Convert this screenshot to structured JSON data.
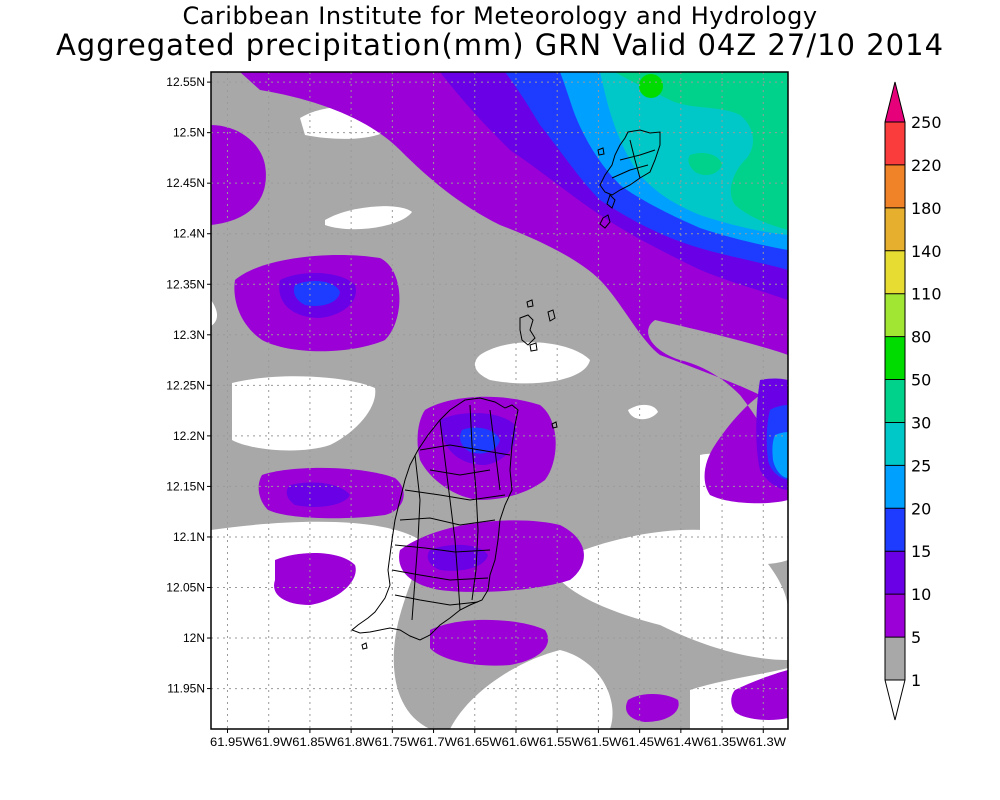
{
  "header": {
    "title_line1": "Caribbean Institute for Meteorology and Hydrology",
    "title_line2": "Aggregated precipitation(mm) GRN Valid 04Z 27/10 2014"
  },
  "map": {
    "region": "GRN",
    "lat_range": [
      11.91,
      12.56
    ],
    "lon_range": [
      -61.97,
      -61.27
    ],
    "lat_labels": [
      "12.55N",
      "12.5N",
      "12.45N",
      "12.4N",
      "12.35N",
      "12.3N",
      "12.25N",
      "12.2N",
      "12.15N",
      "12.1N",
      "12.05N",
      "12N",
      "11.95N"
    ],
    "lon_labels_text": "61.95W61.9W61.85W61.8W61.75W61.7W61.65W61.6W61.55W61.5W61.45W61.4W61.35W61.3W",
    "grid": true
  },
  "colorbar": {
    "levels": [
      "1",
      "5",
      "10",
      "15",
      "20",
      "25",
      "30",
      "50",
      "80",
      "110",
      "140",
      "180",
      "220",
      "250"
    ],
    "colors": [
      "#a8a8a8",
      "#9b00d6",
      "#6a00e6",
      "#1e3cff",
      "#00a0ff",
      "#00c8c8",
      "#00d28c",
      "#00dc00",
      "#a0e632",
      "#e6dc32",
      "#e6af2d",
      "#f08228",
      "#fa3c3c",
      "#e6007a"
    ],
    "below_color": "#ffffff"
  }
}
